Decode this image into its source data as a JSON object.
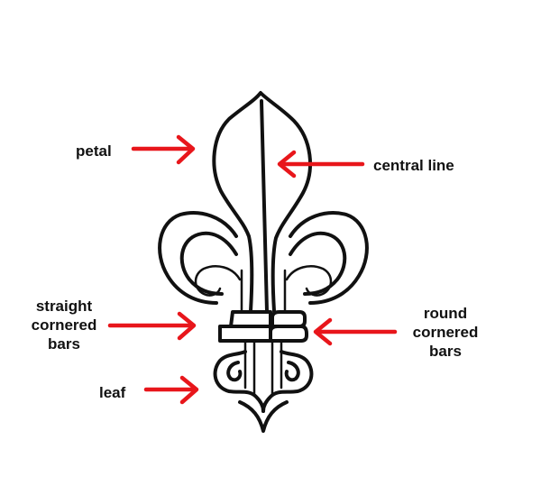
{
  "labels": {
    "petal": "petal",
    "central_line": "central line",
    "straight_cornered_bars": [
      "straight",
      "cornered",
      "bars"
    ],
    "round_cornered_bars": [
      "round",
      "cornered",
      "bars"
    ],
    "leaf": "leaf"
  },
  "colors": {
    "arrow": "#e8161b",
    "outline": "#111111",
    "text": "#111111",
    "background": "#ffffff"
  }
}
